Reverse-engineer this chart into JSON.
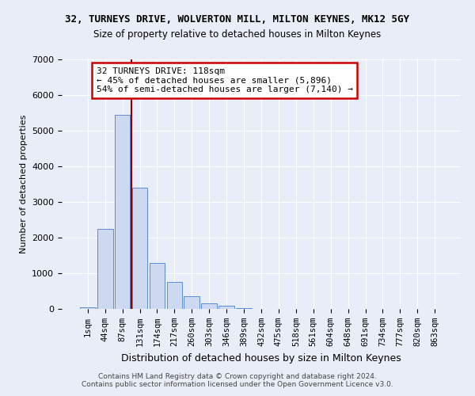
{
  "title": "32, TURNEYS DRIVE, WOLVERTON MILL, MILTON KEYNES, MK12 5GY",
  "subtitle": "Size of property relative to detached houses in Milton Keynes",
  "xlabel": "Distribution of detached houses by size in Milton Keynes",
  "ylabel": "Number of detached properties",
  "categories": [
    "1sqm",
    "44sqm",
    "87sqm",
    "131sqm",
    "174sqm",
    "217sqm",
    "260sqm",
    "303sqm",
    "346sqm",
    "389sqm",
    "432sqm",
    "475sqm",
    "518sqm",
    "561sqm",
    "604sqm",
    "648sqm",
    "691sqm",
    "734sqm",
    "777sqm",
    "820sqm",
    "863sqm"
  ],
  "bar_values": [
    50,
    2250,
    5450,
    3400,
    1280,
    750,
    360,
    155,
    100,
    30,
    0,
    0,
    0,
    0,
    0,
    0,
    0,
    0,
    0,
    0,
    0
  ],
  "bar_color": "#ccd9f0",
  "bar_edge_color": "#5b8dd4",
  "vline_x": 2.5,
  "vline_color": "#8b0000",
  "annotation_text": "32 TURNEYS DRIVE: 118sqm\n← 45% of detached houses are smaller (5,896)\n54% of semi-detached houses are larger (7,140) →",
  "annotation_box_color": "#ffffff",
  "annotation_box_edge": "#cc0000",
  "ylim": [
    0,
    7000
  ],
  "yticks": [
    0,
    1000,
    2000,
    3000,
    4000,
    5000,
    6000,
    7000
  ],
  "footer": "Contains HM Land Registry data © Crown copyright and database right 2024.\nContains public sector information licensed under the Open Government Licence v3.0.",
  "bg_color": "#e8edf7",
  "grid_color": "#ffffff"
}
